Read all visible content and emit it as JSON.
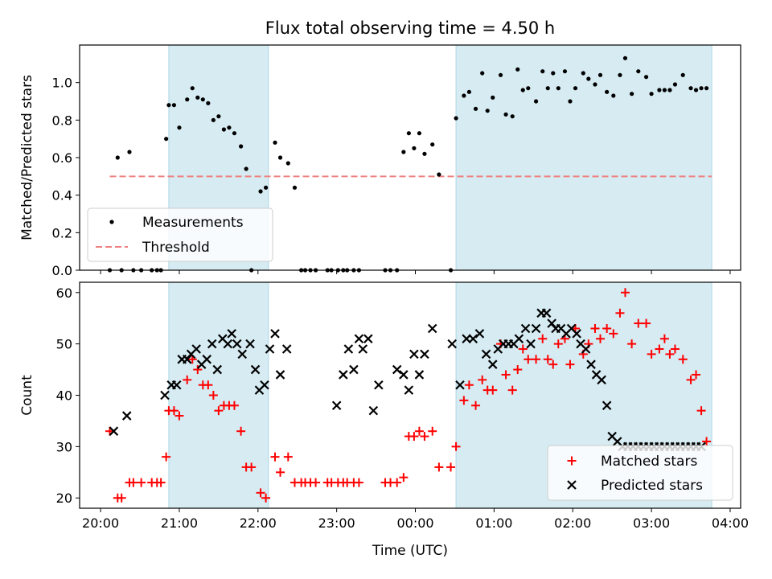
{
  "figure": {
    "title": "Flux total observing time = 4.50 h",
    "xlabel": "Time (UTC)",
    "x_ticks": [
      "20:00",
      "21:00",
      "22:00",
      "23:00",
      "00:00",
      "01:00",
      "02:00",
      "03:00",
      "04:00"
    ],
    "x_tick_minutes": [
      0,
      60,
      120,
      180,
      240,
      300,
      360,
      420,
      480
    ],
    "xlim_minutes": [
      -16,
      488
    ],
    "x_unit_note": "minutes after 20:00 UTC",
    "shaded_intervals_minutes": [
      [
        52,
        128
      ],
      [
        271,
        466
      ]
    ],
    "shade_color": "#add8e6"
  },
  "chart_data": [
    {
      "type": "scatter",
      "ylabel": "Matched/Predicted stars",
      "ylim": [
        0,
        1.2
      ],
      "y_ticks": [
        0.0,
        0.2,
        0.4,
        0.6,
        0.8,
        1.0
      ],
      "y_tick_labels": [
        "0.0",
        "0.2",
        "0.4",
        "0.6",
        "0.8",
        "1.0"
      ],
      "legend_position": "lower-left",
      "threshold": {
        "name": "Threshold",
        "y": 0.5,
        "x_range_minutes": [
          7,
          466
        ],
        "color": "#f08080",
        "style": "dashed"
      },
      "series": [
        {
          "name": "Measurements",
          "color": "#000000",
          "marker": "dot",
          "x": [
            7,
            13,
            16,
            22,
            25,
            31,
            39,
            43,
            46,
            50,
            52,
            56,
            60,
            66,
            70,
            74,
            78,
            82,
            86,
            90,
            94,
            98,
            102,
            107,
            111,
            115,
            122,
            126,
            133,
            137,
            143,
            148,
            153,
            156,
            160,
            164,
            173,
            176,
            181,
            185,
            188,
            193,
            197,
            217,
            221,
            226,
            231,
            235,
            239,
            243,
            247,
            253,
            258,
            267,
            271,
            277,
            281,
            286,
            291,
            295,
            299,
            305,
            309,
            314,
            318,
            322,
            326,
            332,
            337,
            341,
            345,
            349,
            354,
            358,
            362,
            368,
            372,
            377,
            381,
            386,
            391,
            396,
            400,
            405,
            410,
            416,
            420,
            426,
            430,
            434,
            438,
            444,
            450,
            454,
            458,
            462
          ],
          "y": [
            0.0,
            0.6,
            0.0,
            0.63,
            0.0,
            0.0,
            0.0,
            0.0,
            0.0,
            0.7,
            0.88,
            0.88,
            0.76,
            0.91,
            0.97,
            0.92,
            0.91,
            0.89,
            0.8,
            0.82,
            0.75,
            0.76,
            0.73,
            0.66,
            0.54,
            0.0,
            0.42,
            0.44,
            0.68,
            0.6,
            0.57,
            0.44,
            0.0,
            0.0,
            0.0,
            0.0,
            0.0,
            0.0,
            0.0,
            0.0,
            0.0,
            0.0,
            0.0,
            0.0,
            0.0,
            0.0,
            0.63,
            0.73,
            0.65,
            0.73,
            0.62,
            0.67,
            0.51,
            0.0,
            0.81,
            0.93,
            0.95,
            0.86,
            1.05,
            0.85,
            0.92,
            1.04,
            0.83,
            0.82,
            1.07,
            0.96,
            0.97,
            0.9,
            1.06,
            0.97,
            1.05,
            0.97,
            1.06,
            0.9,
            0.97,
            1.05,
            1.02,
            0.99,
            1.04,
            0.95,
            0.93,
            1.04,
            1.13,
            0.94,
            1.06,
            1.03,
            0.94,
            0.96,
            0.96,
            0.96,
            0.99,
            1.04,
            0.97,
            0.96,
            0.97,
            0.97
          ]
        }
      ]
    },
    {
      "type": "scatter",
      "ylabel": "Count",
      "ylim": [
        18,
        62
      ],
      "y_ticks": [
        20,
        30,
        40,
        50,
        60
      ],
      "y_tick_labels": [
        "20",
        "30",
        "40",
        "50",
        "60"
      ],
      "legend_position": "lower-right",
      "series": [
        {
          "name": "Matched stars",
          "color": "#ff0000",
          "marker": "plus",
          "x": [
            7,
            13,
            16,
            22,
            25,
            31,
            39,
            43,
            46,
            50,
            52,
            56,
            60,
            66,
            70,
            74,
            78,
            82,
            86,
            90,
            94,
            98,
            102,
            107,
            111,
            115,
            122,
            126,
            133,
            137,
            143,
            148,
            153,
            156,
            160,
            164,
            173,
            176,
            181,
            185,
            188,
            193,
            197,
            217,
            221,
            226,
            231,
            235,
            239,
            243,
            247,
            253,
            258,
            267,
            271,
            277,
            281,
            286,
            291,
            295,
            299,
            305,
            309,
            314,
            318,
            322,
            326,
            332,
            337,
            341,
            345,
            349,
            354,
            358,
            362,
            368,
            372,
            377,
            381,
            386,
            391,
            396,
            400,
            405,
            410,
            416,
            420,
            426,
            430,
            434,
            438,
            444,
            450,
            454,
            458,
            462
          ],
          "y": [
            33,
            20,
            20,
            23,
            23,
            23,
            23,
            23,
            23,
            28,
            37,
            37,
            36,
            43,
            47,
            45,
            42,
            42,
            40,
            37,
            38,
            38,
            38,
            33,
            26,
            26,
            21,
            20,
            28,
            25,
            28,
            23,
            23,
            23,
            23,
            23,
            23,
            23,
            23,
            23,
            23,
            23,
            23,
            23,
            23,
            23,
            24,
            32,
            32,
            33,
            32,
            33,
            26,
            26,
            30,
            39,
            42,
            38,
            43,
            41,
            41,
            50,
            44,
            41,
            45,
            49,
            47,
            47,
            51,
            47,
            46,
            50,
            51,
            46,
            53,
            48,
            50,
            53,
            51,
            53,
            52,
            56,
            60,
            50,
            54,
            54,
            48,
            49,
            51,
            48,
            49,
            47,
            43,
            44,
            37,
            31
          ]
        },
        {
          "name": "Predicted stars",
          "color": "#000000",
          "marker": "x",
          "x": [
            10,
            20,
            49,
            54,
            58,
            62,
            66,
            69,
            73,
            77,
            81,
            85,
            89,
            93,
            97,
            100,
            104,
            108,
            114,
            118,
            121,
            125,
            129,
            133,
            137,
            142,
            180,
            185,
            189,
            193,
            197,
            200,
            204,
            208,
            212,
            226,
            231,
            235,
            239,
            243,
            247,
            253,
            268,
            274,
            279,
            284,
            289,
            294,
            299,
            303,
            307,
            311,
            315,
            319,
            324,
            328,
            332,
            336,
            340,
            344,
            347,
            351,
            355,
            359,
            363,
            366,
            370,
            374,
            378,
            382,
            386,
            390,
            394,
            398,
            402,
            406,
            410,
            414,
            418,
            422,
            426,
            430,
            434,
            438,
            442,
            446,
            450,
            454,
            458
          ],
          "y": [
            33,
            36,
            40,
            42,
            42,
            47,
            47,
            48,
            49,
            46,
            47,
            50,
            45,
            51,
            50,
            52,
            50,
            48,
            50,
            45,
            41,
            42,
            49,
            52,
            44,
            49,
            38,
            44,
            49,
            45,
            51,
            49,
            51,
            37,
            42,
            45,
            44,
            41,
            48,
            44,
            48,
            53,
            50,
            42,
            51,
            51,
            52,
            48,
            46,
            49,
            50,
            50,
            50,
            51,
            53,
            50,
            53,
            56,
            56,
            54,
            53,
            53,
            52,
            53,
            52,
            50,
            49,
            46,
            44,
            43,
            38,
            32,
            31,
            30,
            30,
            30,
            30,
            30,
            30,
            30,
            30,
            30,
            30,
            30,
            30,
            30,
            30,
            30,
            30
          ]
        }
      ]
    }
  ]
}
